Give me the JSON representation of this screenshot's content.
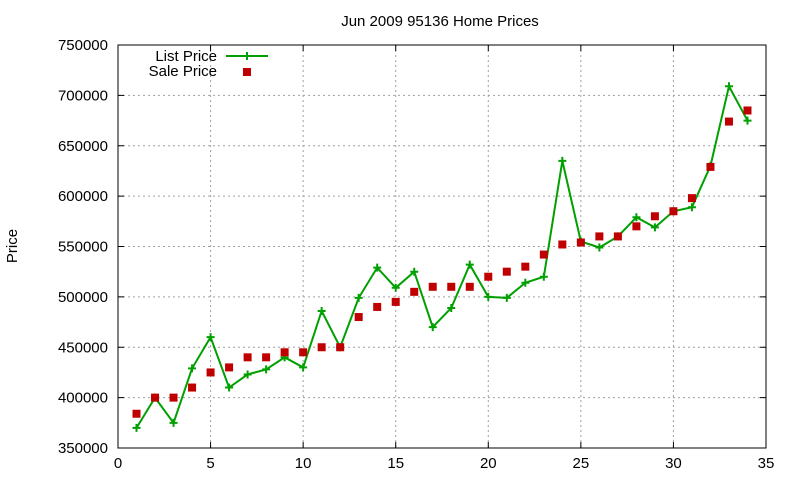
{
  "chart_data": {
    "type": "line",
    "title": "Jun 2009 95136 Home Prices",
    "xlabel": "",
    "ylabel": "Price",
    "xlim": [
      0,
      35
    ],
    "ylim": [
      350000,
      750000
    ],
    "xticks": [
      0,
      5,
      10,
      15,
      20,
      25,
      30,
      35
    ],
    "yticks": [
      350000,
      400000,
      450000,
      500000,
      550000,
      600000,
      650000,
      700000,
      750000
    ],
    "grid": true,
    "legend_position": "top-left",
    "x": [
      1,
      2,
      3,
      4,
      5,
      6,
      7,
      8,
      9,
      10,
      11,
      12,
      13,
      14,
      15,
      16,
      17,
      18,
      19,
      20,
      21,
      22,
      23,
      24,
      25,
      26,
      27,
      28,
      29,
      30,
      31,
      32,
      33,
      34
    ],
    "series": [
      {
        "name": "List Price",
        "style": "line-with-plus-markers",
        "color": "#00a000",
        "values": [
          370000,
          400000,
          375000,
          429000,
          460000,
          410000,
          423000,
          428000,
          440000,
          430000,
          486000,
          450000,
          499000,
          529000,
          509000,
          525000,
          470000,
          489000,
          532000,
          500000,
          499000,
          514000,
          520000,
          635000,
          555000,
          549000,
          560000,
          579000,
          569000,
          585000,
          589000,
          630000,
          709000,
          675000
        ]
      },
      {
        "name": "Sale Price",
        "style": "square-markers",
        "color": "#c00000",
        "values": [
          384000,
          400000,
          400000,
          410000,
          425000,
          430000,
          440000,
          440000,
          445000,
          445000,
          450000,
          450000,
          480000,
          490000,
          495000,
          505000,
          510000,
          510000,
          510000,
          520000,
          525000,
          530000,
          542000,
          552000,
          554000,
          560000,
          560000,
          570000,
          580000,
          585000,
          598000,
          629000,
          674000,
          685000
        ]
      }
    ]
  }
}
